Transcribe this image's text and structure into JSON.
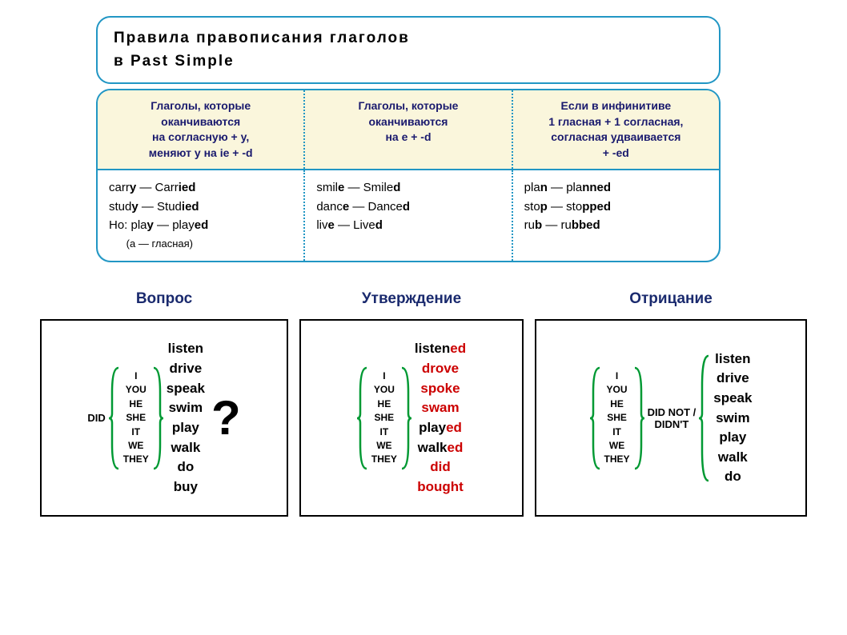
{
  "title_line1": "Правила правописания глаголов",
  "title_line2": "в Past Simple",
  "rules": {
    "col1": {
      "header": "Глаголы, которые\nоканчиваются\nна согласную + y,\nменяют y на ie + -d",
      "examples": [
        {
          "base": "carry",
          "base_bold": "y",
          "past": "Carried",
          "past_bold": "ied"
        },
        {
          "base": "study",
          "base_bold": "y",
          "past": "Studied",
          "past_bold": "ied"
        }
      ],
      "but_label": "Но:",
      "but_base": "play",
      "but_past": "played",
      "but_past_bold": "ed",
      "note": "(a — гласная)"
    },
    "col2": {
      "header": "Глаголы, которые\nоканчиваются\nна e + -d",
      "examples": [
        {
          "base": "smile",
          "base_bold": "e",
          "past": "Smiled",
          "past_bold": "d"
        },
        {
          "base": "dance",
          "base_bold": "e",
          "past": "Danced",
          "past_bold": "d"
        },
        {
          "base": "live",
          "base_bold": "e",
          "past": "Lived",
          "past_bold": "d"
        }
      ]
    },
    "col3": {
      "header": "Если в инфинитиве\n1 гласная + 1 согласная,\nсогласная удваивается\n+ -ed",
      "examples": [
        {
          "base": "plan",
          "base_bold": "n",
          "past": "planned",
          "past_bold": "nned"
        },
        {
          "base": "stop",
          "base_bold": "p",
          "past": "stopped",
          "past_bold": "pped"
        },
        {
          "base": "rub",
          "base_bold": "b",
          "past": "rubbed",
          "past_bold": "bbed"
        }
      ]
    }
  },
  "forms": {
    "question": {
      "title": "Вопрос",
      "aux": "DID",
      "pronouns": [
        "I",
        "YOU",
        "HE",
        "SHE",
        "IT",
        "WE",
        "THEY"
      ],
      "verbs": [
        "listen",
        "drive",
        "speak",
        "swim",
        "play",
        "walk",
        "do",
        "buy"
      ],
      "suffix": "?"
    },
    "affirmation": {
      "title": "Утверждение",
      "pronouns": [
        "I",
        "YOU",
        "HE",
        "SHE",
        "IT",
        "WE",
        "THEY"
      ],
      "verbs": [
        {
          "root": "listen",
          "ed": "ed"
        },
        {
          "past": "drove"
        },
        {
          "past": "spoke"
        },
        {
          "past": "swam"
        },
        {
          "root": "play",
          "ed": "ed"
        },
        {
          "root": "walk",
          "ed": "ed"
        },
        {
          "past": "did"
        },
        {
          "past": "bought"
        }
      ]
    },
    "negation": {
      "title": "Отрицание",
      "pronouns": [
        "I",
        "YOU",
        "HE",
        "SHE",
        "IT",
        "WE",
        "THEY"
      ],
      "aux": "DID NOT /\nDIDN'T",
      "verbs": [
        "listen",
        "drive",
        "speak",
        "swim",
        "play",
        "walk",
        "do"
      ]
    }
  },
  "colors": {
    "border_blue": "#2196c4",
    "bg_light_blue": "#d4eef5",
    "bg_yellow": "#faf6dc",
    "brace_green": "#009933",
    "dark_blue": "#1a2a6e",
    "red": "#c00"
  }
}
